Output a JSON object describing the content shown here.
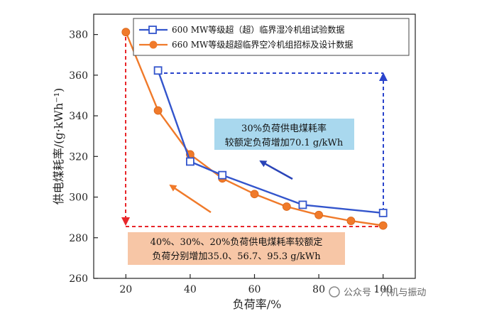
{
  "chart_data": {
    "type": "line",
    "xlabel": "负荷率/%",
    "ylabel": "供电煤耗率/(g·kWh⁻¹)",
    "xlim": [
      10,
      110
    ],
    "ylim": [
      260,
      390
    ],
    "xticks": [
      20,
      40,
      60,
      80,
      100
    ],
    "yticks": [
      260,
      280,
      300,
      320,
      340,
      360,
      380
    ],
    "legend_position": "top",
    "series": [
      {
        "name": "600 MW等级超（超）临界湿冷机组试验数据",
        "color": "#3355cc",
        "marker": "square",
        "x": [
          30,
          40,
          50,
          75,
          100
        ],
        "y": [
          362.3,
          317.5,
          310.8,
          296.2,
          292.2
        ]
      },
      {
        "name": "660 MW等级超超临界空冷机组招标及设计数据",
        "color": "#f07a2a",
        "marker": "circle",
        "x": [
          20,
          30,
          40,
          50,
          60,
          70,
          80,
          90,
          100
        ],
        "y": [
          381.2,
          342.6,
          321.0,
          309.2,
          301.5,
          295.3,
          291.2,
          288.3,
          286.0
        ]
      }
    ],
    "annotations": [
      {
        "line1": "30%负荷供电煤耗率",
        "line2": "较额定负荷增加70.1 g/kWh",
        "bg": "#a9d8ee"
      },
      {
        "line1": "40%、30%、20%负荷供电煤耗率较额定",
        "line2": "负荷分别增加35.0、56.7、95.3 g/kWh",
        "bg": "#f7c6a6"
      }
    ]
  },
  "watermark": "公众号 · 汽机与振动"
}
